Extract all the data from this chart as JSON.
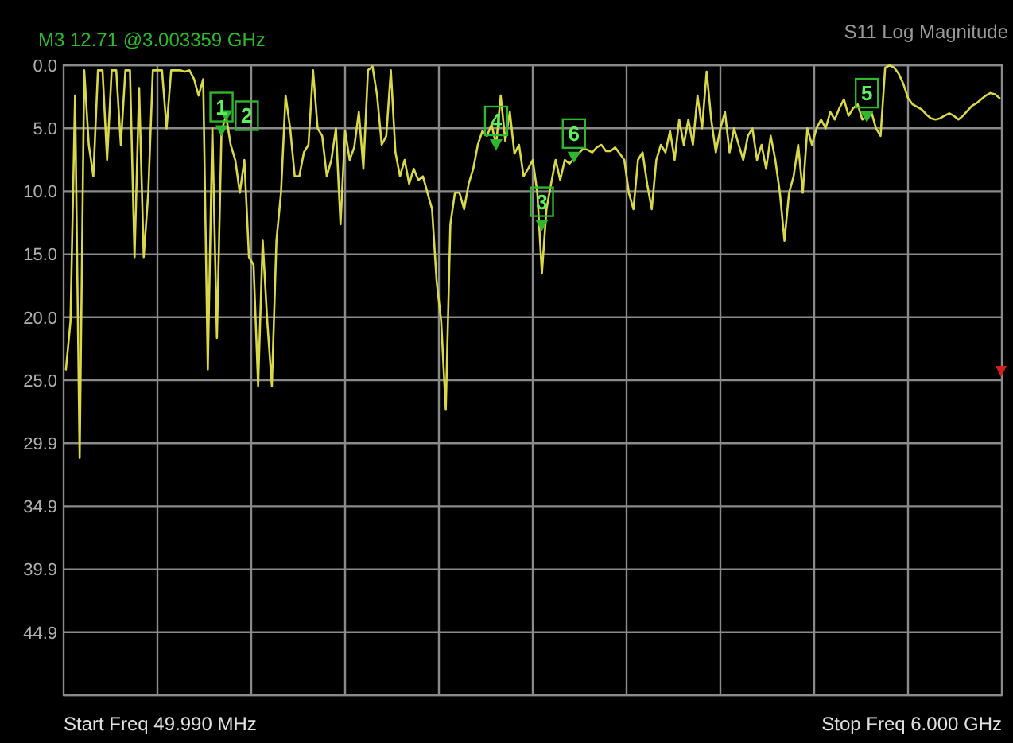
{
  "chart_data": {
    "type": "line",
    "title": "M3 12.71 @3.003359 GHz",
    "subtitle": "S11 Log Magnitude",
    "annotations": [
      "Start Freq 49.990 MHz",
      "Stop Freq 6.000 GHz",
      {
        "text": "1",
        "y": 5.2
      },
      {
        "text": "2",
        "y": 4.0
      },
      {
        "text": "4",
        "y": 6.3
      },
      {
        "text": "3",
        "y": 12.7
      },
      {
        "text": "6",
        "y": 7.3
      },
      {
        "text": "5",
        "y": 4.1
      }
    ],
    "categories": [
      null,
      null,
      null,
      null,
      null,
      null,
      null,
      null,
      null,
      null,
      null,
      null,
      null,
      null,
      null,
      null,
      null,
      null,
      null,
      null,
      null,
      null,
      null,
      null,
      null,
      null,
      null,
      null,
      null,
      null,
      null,
      null,
      null,
      null,
      null,
      null,
      null,
      null,
      null,
      null,
      null,
      null,
      null,
      null,
      null,
      null,
      null,
      null,
      null,
      null,
      null,
      null,
      null,
      null,
      null,
      null,
      null,
      null,
      null,
      null,
      null,
      null,
      null,
      null,
      null,
      null,
      null,
      null,
      null,
      null,
      null,
      null,
      null,
      null,
      null,
      null,
      null,
      null,
      null,
      null,
      null,
      null,
      null,
      null,
      null,
      null,
      null,
      null,
      null,
      null,
      null,
      null,
      null,
      null,
      null,
      null,
      null,
      null,
      null,
      null,
      null,
      null,
      null,
      null,
      null,
      null,
      null,
      null,
      null,
      null,
      null,
      null,
      null,
      null,
      null,
      null,
      null,
      null,
      null,
      null,
      null,
      null,
      null,
      null,
      null,
      null,
      null,
      null,
      null,
      null,
      null,
      null,
      null,
      null,
      null,
      null,
      null,
      null,
      null,
      null,
      null,
      null,
      null,
      null,
      null,
      null,
      null,
      null,
      null,
      null,
      null,
      null,
      null,
      null,
      null,
      null,
      null,
      null,
      null,
      null,
      null,
      null,
      null,
      null,
      null,
      null,
      null,
      null,
      null,
      null,
      null,
      null,
      null,
      null,
      null,
      null,
      null,
      null,
      null,
      null,
      null,
      null,
      null,
      null,
      null,
      null,
      null,
      null,
      null,
      null,
      null,
      null,
      null,
      null,
      null,
      null,
      null,
      null,
      null,
      null,
      null,
      null,
      null,
      null,
      null
    ],
    "ylim": [
      49.9,
      0
    ],
    "yticks": [
      {
        "value": 0,
        "label": "0.0"
      },
      {
        "value": 4.99,
        "label": "5.0"
      },
      {
        "value": 9.98,
        "label": "10.0"
      },
      {
        "value": 14.97,
        "label": "15.0"
      },
      {
        "value": 19.96,
        "label": "20.0"
      },
      {
        "value": 24.95,
        "label": "25.0"
      },
      {
        "value": 29.94,
        "label": "29.9"
      },
      {
        "value": 34.93,
        "label": "34.9"
      },
      {
        "value": 39.92,
        "label": "39.9"
      },
      {
        "value": 44.91,
        "label": "44.9"
      },
      {
        "value": 49.9,
        "label": null
      }
    ],
    "grid": true,
    "series": [
      {
        "color": "#d8d848",
        "values": [
          24.1,
          20.3,
          2.4,
          31.1,
          0.4,
          6.3,
          8.8,
          0.4,
          0.4,
          7.5,
          0.4,
          0.4,
          6.3,
          0.4,
          0.4,
          15.2,
          1.8,
          15.2,
          10.1,
          0.4,
          0.4,
          0.4,
          5.0,
          0.4,
          0.4,
          0.4,
          0.5,
          0.4,
          1.1,
          2.4,
          1.1,
          24.1,
          5.0,
          21.6,
          5.2,
          4.0,
          6.3,
          7.5,
          10.1,
          7.5,
          15.2,
          15.8,
          25.4,
          13.9,
          20.3,
          25.4,
          13.9,
          10.1,
          2.4,
          5.0,
          8.8,
          8.8,
          6.9,
          6.3,
          0.4,
          5.0,
          5.6,
          8.8,
          7.5,
          5.0,
          12.6,
          5.2,
          7.5,
          6.5,
          3.7,
          8.2,
          0.4,
          0.1,
          2.4,
          6.3,
          5.6,
          0.4,
          6.9,
          8.8,
          7.5,
          9.4,
          8.2,
          9.1,
          8.8,
          10.1,
          11.4,
          17.1,
          20.3,
          27.3,
          12.6,
          10.1,
          10.1,
          11.4,
          9.4,
          8.2,
          6.3,
          5.2,
          5.6,
          4.7,
          6.3,
          2.4,
          6.0,
          3.7,
          7.0,
          6.3,
          8.8,
          8.2,
          7.5,
          10.1,
          16.5,
          11.4,
          9.4,
          7.5,
          9.1,
          7.5,
          7.8,
          7.4,
          7.0,
          6.6,
          6.7,
          6.9,
          6.5,
          6.3,
          6.8,
          6.8,
          6.5,
          7.0,
          7.5,
          10.1,
          11.4,
          7.5,
          6.9,
          9.4,
          11.4,
          7.5,
          6.3,
          6.9,
          5.2,
          7.5,
          4.3,
          6.3,
          4.3,
          6.3,
          2.4,
          5.0,
          0.5,
          4.3,
          6.9,
          5.0,
          3.7,
          6.9,
          5.0,
          6.3,
          7.5,
          5.6,
          5.0,
          7.5,
          6.3,
          8.2,
          5.6,
          7.5,
          10.1,
          13.9,
          10.1,
          8.8,
          6.3,
          10.1,
          5.0,
          6.3,
          5.0,
          4.3,
          5.0,
          3.7,
          4.3,
          3.4,
          2.7,
          4.0,
          3.4,
          3.1,
          4.3,
          4.1,
          3.7,
          5.0,
          5.6,
          0.2,
          0,
          0.2,
          0.7,
          1.5,
          2.6,
          3.1,
          3.3,
          3.5,
          3.9,
          4.2,
          4.3,
          4.2,
          4.0,
          3.8,
          4.0,
          4.3,
          4.0,
          3.6,
          3.2,
          3.0,
          2.7,
          2.4,
          2.2,
          2.3,
          2.6
        ]
      },
      {
        "type": "scatter",
        "color": "#2fb82f",
        "marker": "triangle",
        "values": [
          null,
          null,
          null,
          null,
          null,
          null,
          null,
          null,
          null,
          null,
          null,
          null,
          null,
          null,
          null,
          null,
          null,
          null,
          null,
          null,
          null,
          null,
          null,
          null,
          null,
          null,
          null,
          null,
          null,
          null,
          null,
          null,
          null,
          null,
          5.2,
          4.0,
          null,
          null,
          null,
          null,
          null,
          null,
          null,
          null,
          null,
          null,
          null,
          null,
          null,
          null,
          null,
          null,
          null,
          null,
          null,
          null,
          null,
          null,
          null,
          null,
          null,
          null,
          null,
          null,
          null,
          null,
          null,
          null,
          null,
          null,
          null,
          null,
          null,
          null,
          null,
          null,
          null,
          null,
          null,
          null,
          null,
          null,
          null,
          null,
          null,
          null,
          null,
          null,
          null,
          null,
          null,
          null,
          null,
          null,
          6.3,
          null,
          null,
          null,
          null,
          null,
          null,
          null,
          null,
          null,
          12.7,
          null,
          null,
          null,
          null,
          null,
          null,
          7.3,
          null,
          null,
          null,
          null,
          null,
          null,
          null,
          null,
          null,
          null,
          null,
          null,
          null,
          null,
          null,
          null,
          null,
          null,
          null,
          null,
          null,
          null,
          null,
          null,
          null,
          null,
          null,
          null,
          null,
          null,
          null,
          null,
          null,
          null,
          null,
          null,
          null,
          null,
          null,
          null,
          null,
          null,
          null,
          null,
          null,
          null,
          null,
          null,
          null,
          null,
          null,
          null,
          null,
          null,
          null,
          null,
          null,
          null,
          null,
          null,
          null,
          null,
          null,
          4.1,
          null,
          null,
          null,
          null,
          null,
          null,
          null,
          null,
          null,
          null,
          null,
          null,
          null,
          null,
          null,
          null,
          null,
          null,
          null,
          null,
          null,
          null,
          null,
          null,
          null,
          null,
          null,
          null,
          null
        ]
      }
    ]
  }
}
